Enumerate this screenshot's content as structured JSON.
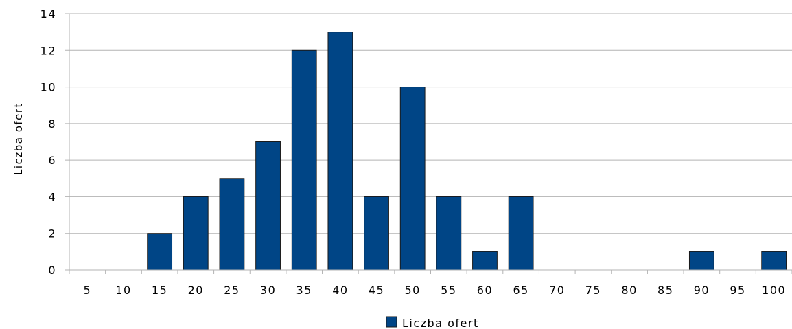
{
  "colors": {
    "bar_fill": "#004586",
    "bar_stroke": "#1a1a1a",
    "grid": "#b3b3b3",
    "axis": "#b3b3b3",
    "background": "#ffffff"
  },
  "chart_data": {
    "type": "bar",
    "categories": [
      "5",
      "10",
      "15",
      "20",
      "25",
      "30",
      "35",
      "40",
      "45",
      "50",
      "55",
      "60",
      "65",
      "70",
      "75",
      "80",
      "85",
      "90",
      "95",
      "100"
    ],
    "series": [
      {
        "name": "Liczba ofert",
        "values": [
          0,
          0,
          2,
          4,
          5,
          7,
          12,
          13,
          4,
          10,
          4,
          1,
          4,
          0,
          0,
          0,
          0,
          1,
          0,
          1
        ]
      }
    ],
    "xlabel": "",
    "ylabel": "Liczba ofert",
    "ylim": [
      0,
      14
    ],
    "yticks": [
      0,
      2,
      4,
      6,
      8,
      10,
      12,
      14
    ],
    "grid": "horizontal",
    "legend_position": "bottom"
  }
}
